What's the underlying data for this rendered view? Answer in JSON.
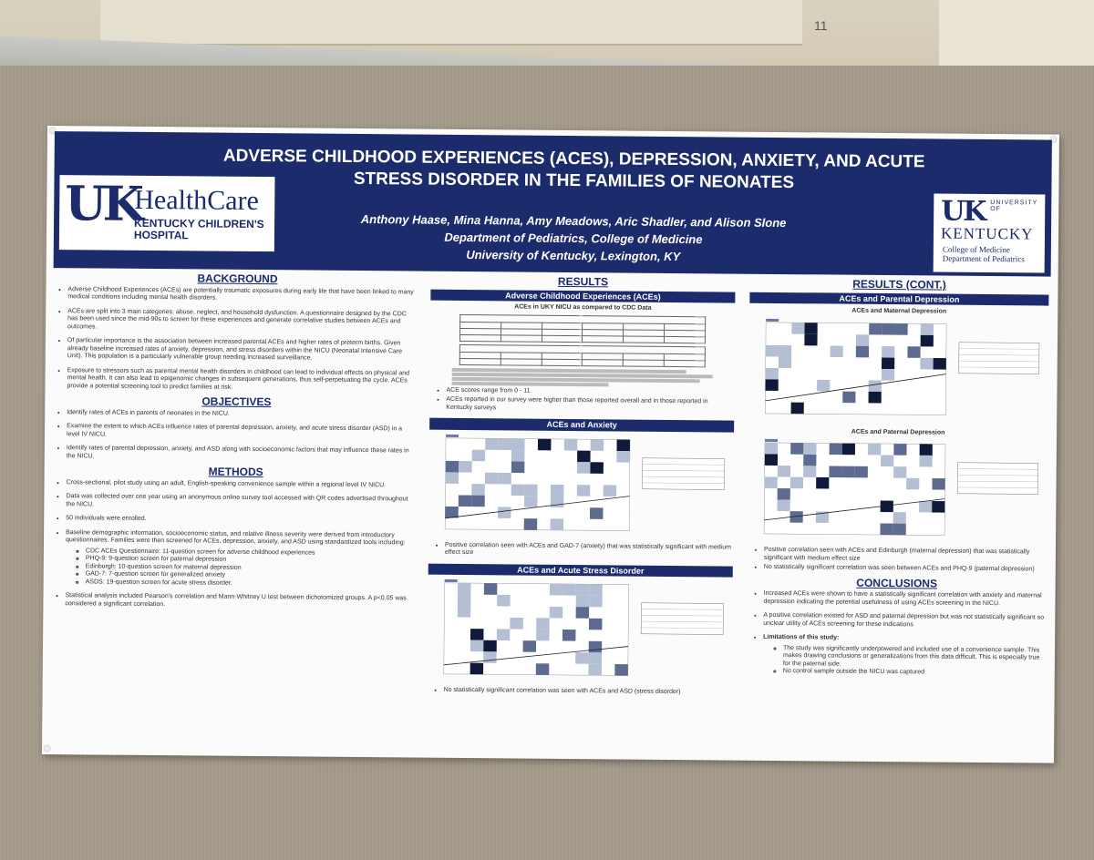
{
  "scene": {
    "wall_label": "11"
  },
  "header": {
    "title_line1": "ADVERSE CHILDHOOD EXPERIENCES (ACES), DEPRESSION, ANXIETY, AND ACUTE",
    "title_line2": "STRESS DISORDER IN THE FAMILIES OF NEONATES",
    "authors": "Anthony Haase, Mina Hanna, Amy Meadows, Aric Shadler, and Alison Slone",
    "department": "Department of Pediatrics, College of Medicine",
    "institution": "University of Kentucky, Lexington, KY"
  },
  "logos": {
    "healthcare": {
      "mark": "UK",
      "name": "HealthCare",
      "sub1": "KENTUCKY CHILDREN'S",
      "sub2": "HOSPITAL"
    },
    "uk": {
      "mark": "UK",
      "univ": "UNIVERSITY OF",
      "kentucky": "KENTUCKY",
      "college": "College of Medicine",
      "dept": "Department of Pediatrics"
    }
  },
  "background": {
    "heading": "BACKGROUND",
    "items": [
      "Adverse Childhood Experiences (ACEs) are potentially traumatic exposures during early life that have been linked to many medical conditions including mental health disorders.",
      "ACEs are split into 3 main categories: abuse, neglect, and household dysfunction. A questionnaire designed by the CDC has been used since the mid-90s to screen for these experiences and generate correlative studies between ACEs and outcomes.",
      "Of particular importance is the association between increased parental ACEs and higher rates of preterm births. Given already baseline increased rates of anxiety, depression, and stress disorders within the NICU (Neonatal Intensive Care Unit). This population is a particularly vulnerable group needing increased surveillance.",
      "Exposure to stressors such as parental mental health disorders in childhood can lead to individual effects on physical and mental health. It can also lead to epigenomic changes in subsequent generations, thus self-perpetuating the cycle. ACEs provide a potential screening tool to predict families at risk."
    ]
  },
  "objectives": {
    "heading": "OBJECTIVES",
    "items": [
      "Identify rates of ACEs in parents of neonates in the NICU.",
      "Examine the extent to which ACEs influence rates of parental depression, anxiety, and acute stress disorder (ASD) in a level IV NICU.",
      "Identify rates of parental depression, anxiety, and ASD along with socioeconomic factors that may influence these rates in the NICU."
    ]
  },
  "methods": {
    "heading": "METHODS",
    "items": [
      "Cross-sectional, pilot study using an adult, English-speaking convenience sample within a regional level IV NICU.",
      "Data was collected over one year using an anonymous online survey tool accessed with QR codes advertised throughout the NICU.",
      "50 individuals were enrolled.",
      "Baseline demographic information, socioeconomic status, and relative illness severity were derived from introductory questionnaires. Families were then screened for ACEs, depression, anxiety, and ASD using standardized tools including:"
    ],
    "tools": [
      "CDC ACEs Questionnaire: 11-question screen for adverse childhood experiences",
      "PHQ-9: 9-question screen for paternal depression",
      "Edinburgh: 10-question screen for maternal depression",
      "GAD-7: 7-question screen for generalized anxiety",
      "ASDS: 19-question screen for acute stress disorder."
    ],
    "last": "Statistical analysis included Pearson's correlation and Mann-Whitney U test between dichotomized groups. A p<0.05 was considered a significant correlation."
  },
  "results": {
    "heading": "RESULTS",
    "aces_bar": "Adverse Childhood Experiences (ACEs)",
    "table_caption": "ACEs in UKY NICU as compared to CDC Data",
    "bullets": [
      "ACE scores range from 0 - 11",
      "ACEs reported in our survey were higher than those reported overall and in those reported in Kentucky surveys"
    ],
    "anxiety_bar": "ACEs and Anxiety",
    "anxiety_bullet": "Positive correlation seen with ACEs and GAD-7 (anxiety) that was statistically significant with medium effect size",
    "asd_bar": "ACEs and Acute Stress Disorder",
    "asd_bullet": "No statistically significant correlation was seen with ACEs and ASD (stress disorder)"
  },
  "results_cont": {
    "heading": "RESULTS (CONT.)",
    "depression_bar": "ACEs and Parental Depression",
    "maternal_caption": "ACEs and Maternal Depression",
    "paternal_caption": "ACEs and Paternal Depression",
    "bullets": [
      "Positive correlation seen with ACEs and Edinburgh (maternal depression) that was statistically significant with medium effect size",
      "No statistically significant correlation was seen between ACEs and PHQ-9 (paternal depression)"
    ]
  },
  "conclusions": {
    "heading": "CONCLUSIONS",
    "items": [
      "Increased ACEs were shown to have a statistically significant correlation with anxiety and maternal depression indicating the potential usefulness of using ACEs screening in the NICU.",
      "A positive correlation existed for ASD and paternal depression but was not statistically significant so unclear utility of ACEs screening for these indications"
    ],
    "limitations_heading": "Limitations of this study:",
    "limitations": [
      "The study was significantly underpowered and included use of a convenience sample. This makes drawing conclusions or generalizations from this data difficult. This is especially true for the paternal side.",
      "No control sample outside the NICU was captured"
    ]
  }
}
